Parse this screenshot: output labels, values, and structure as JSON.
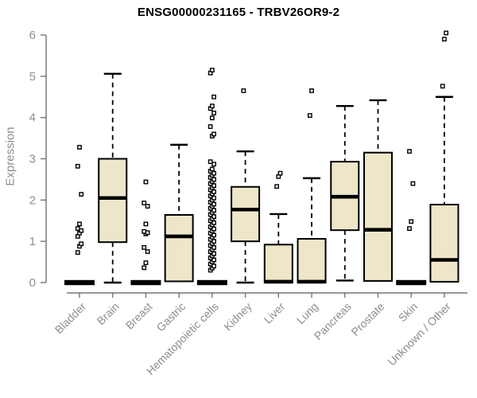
{
  "title": "ENSG00000231165 - TRBV26OR9-2",
  "chart_data": {
    "type": "boxplot",
    "title": "ENSG00000231165 - TRBV26OR9-2",
    "xlabel": "",
    "ylabel": "Expression",
    "ylim": [
      0,
      6
    ],
    "y_ticks": [
      0,
      1,
      2,
      3,
      4,
      5,
      6
    ],
    "grid": false,
    "legend": "none",
    "categories": [
      "Bladder",
      "Brain",
      "Breast",
      "Gastric",
      "Hematopoietic cells",
      "Kidney",
      "Liver",
      "Lung",
      "Pancreas",
      "Prostate",
      "Skin",
      "Unknown / Other"
    ],
    "series": [
      {
        "category": "Bladder",
        "q1": 0,
        "median": 0,
        "q3": 0,
        "whisker_low": 0,
        "whisker_high": 0,
        "outliers": [
          0.73,
          0.88,
          0.94,
          1.12,
          1.2,
          1.26,
          1.31,
          1.42,
          2.14,
          2.82,
          3.28
        ]
      },
      {
        "category": "Brain",
        "q1": 0.98,
        "median": 2.05,
        "q3": 3.0,
        "whisker_low": 0,
        "whisker_high": 5.06,
        "outliers": []
      },
      {
        "category": "Breast",
        "q1": 0,
        "median": 0,
        "q3": 0,
        "whisker_low": 0,
        "whisker_high": 0,
        "outliers": [
          0.36,
          0.48,
          0.75,
          0.85,
          1.18,
          1.21,
          1.24,
          1.42,
          1.85,
          1.93,
          2.44
        ]
      },
      {
        "category": "Gastric",
        "q1": 0.03,
        "median": 1.12,
        "q3": 1.64,
        "whisker_low": 0.03,
        "whisker_high": 3.34,
        "outliers": []
      },
      {
        "category": "Hematopoietic cells",
        "q1": 0,
        "median": 0,
        "q3": 0,
        "whisker_low": 0,
        "whisker_high": 0,
        "outliers": [
          0.3,
          0.35,
          0.4,
          0.45,
          0.5,
          0.55,
          0.6,
          0.65,
          0.7,
          0.75,
          0.8,
          0.85,
          0.9,
          0.95,
          1.0,
          1.05,
          1.1,
          1.15,
          1.2,
          1.25,
          1.3,
          1.35,
          1.4,
          1.45,
          1.5,
          1.55,
          1.6,
          1.65,
          1.7,
          1.75,
          1.8,
          1.85,
          1.9,
          1.95,
          2.0,
          2.05,
          2.1,
          2.15,
          2.2,
          2.25,
          2.3,
          2.35,
          2.4,
          2.45,
          2.5,
          2.55,
          2.6,
          2.65,
          2.7,
          2.75,
          2.87,
          2.93,
          3.55,
          3.6,
          3.78,
          3.99,
          4.11,
          4.22,
          4.28,
          4.5,
          5.08,
          5.15
        ]
      },
      {
        "category": "Kidney",
        "q1": 1.0,
        "median": 1.77,
        "q3": 2.32,
        "whisker_low": 0,
        "whisker_high": 3.18,
        "outliers": [
          4.65
        ]
      },
      {
        "category": "Liver",
        "q1": 0,
        "median": 0.02,
        "q3": 0.92,
        "whisker_low": 0,
        "whisker_high": 1.66,
        "outliers": [
          2.33,
          2.57,
          2.65
        ]
      },
      {
        "category": "Lung",
        "q1": 0,
        "median": 0.02,
        "q3": 1.06,
        "whisker_low": 0,
        "whisker_high": 2.53,
        "outliers": [
          4.05,
          4.65
        ]
      },
      {
        "category": "Pancreas",
        "q1": 1.27,
        "median": 2.08,
        "q3": 2.93,
        "whisker_low": 0.05,
        "whisker_high": 4.28,
        "outliers": []
      },
      {
        "category": "Prostate",
        "q1": 0.04,
        "median": 1.28,
        "q3": 3.15,
        "whisker_low": 0.04,
        "whisker_high": 4.42,
        "outliers": []
      },
      {
        "category": "Skin",
        "q1": 0,
        "median": 0,
        "q3": 0,
        "whisker_low": 0,
        "whisker_high": 0,
        "outliers": [
          1.31,
          1.48,
          2.4,
          3.18
        ]
      },
      {
        "category": "Unknown / Other",
        "q1": 0.02,
        "median": 0.55,
        "q3": 1.89,
        "whisker_low": 0.02,
        "whisker_high": 4.5,
        "outliers": [
          4.76,
          5.9,
          6.05
        ]
      }
    ],
    "style": {
      "box_fill": "#ede6c9",
      "box_border": "#000000",
      "median_color": "#000000",
      "whisker_color": "#000000",
      "outlier_stroke": "#000000",
      "outlier_fill": "#ffffff",
      "axis_color": "#757575",
      "label_color": "#8e8e8e",
      "title_color": "#000000",
      "background": "#ffffff"
    }
  }
}
